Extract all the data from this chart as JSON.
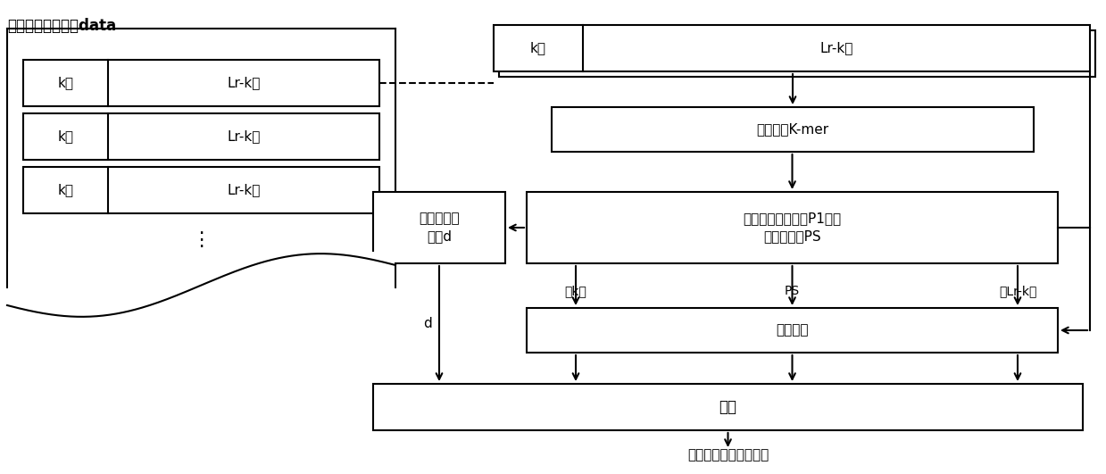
{
  "fig_width": 12.39,
  "fig_height": 5.31,
  "left_title": "基因测序数据样本data",
  "box_kmer": "提取短串K-mer",
  "box_predict": "根据预测数据模型P1获取\n预测字符集PS",
  "box_chain": "确定正负链\n类型d",
  "box_reversible": "可逆运算",
  "box_compress": "压缩",
  "label_output": "压缩后的基因测序数据",
  "label_d": "d",
  "label_qianK": "前k位",
  "label_PS": "PS",
  "label_houLr": "后Lr-k位",
  "label_k": "k位",
  "label_lr": "Lr-k位",
  "label_dots": "⋮"
}
